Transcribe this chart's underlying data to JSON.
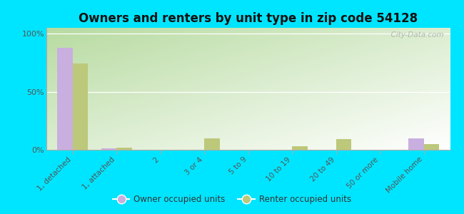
{
  "title": "Owners and renters by unit type in zip code 54128",
  "categories": [
    "1, detached",
    "1, attached",
    "2",
    "3 or 4",
    "5 to 9",
    "10 to 19",
    "20 to 49",
    "50 or more",
    "Mobile home"
  ],
  "owner_values": [
    88,
    1,
    0,
    0,
    0,
    0,
    0,
    0,
    10
  ],
  "renter_values": [
    74,
    2,
    0,
    10,
    0,
    3,
    9,
    0,
    5
  ],
  "owner_color": "#c9aee0",
  "renter_color": "#bcc87a",
  "bg_outer": "#00e5ff",
  "bg_grad_topleft": "#b8dba0",
  "bg_grad_topright": "#e8f5e0",
  "bg_grad_bottom": "#f0fae8",
  "yticks": [
    0,
    50,
    100
  ],
  "ytick_labels": [
    "0%",
    "50%",
    "100%"
  ],
  "ylim_max": 105,
  "bar_width": 0.35,
  "watermark": "  City-Data.com",
  "legend_owner": "Owner occupied units",
  "legend_renter": "Renter occupied units"
}
